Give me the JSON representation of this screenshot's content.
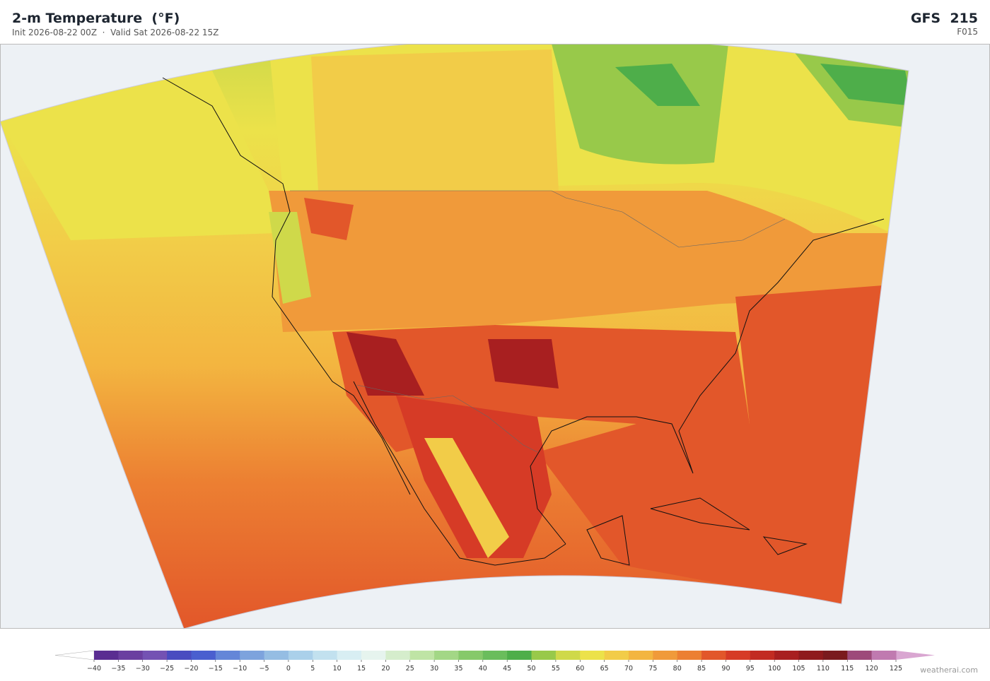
{
  "header": {
    "title": "2-m Temperature  (°F)",
    "subtitle": "Init 2026-08-22 00Z  ·  Valid Sat 2026-08-22 15Z",
    "model": "GFS  215",
    "forecast_hour": "F015"
  },
  "colorbar": {
    "ticks": [
      {
        "value": -40,
        "label": "−40"
      },
      {
        "value": -35,
        "label": "−35"
      },
      {
        "value": -30,
        "label": "−30"
      },
      {
        "value": -25,
        "label": "−25"
      },
      {
        "value": -20,
        "label": "−20"
      },
      {
        "value": -15,
        "label": "−15"
      },
      {
        "value": -10,
        "label": "−10"
      },
      {
        "value": -5,
        "label": "−5"
      },
      0,
      5,
      10,
      15,
      20,
      25,
      30,
      35,
      40,
      45,
      50,
      55,
      60,
      65,
      70,
      75,
      80,
      85,
      90,
      95,
      100,
      105,
      110,
      115,
      120,
      125
    ],
    "colors": [
      "#5a2d91",
      "#6b3fa0",
      "#7452b3",
      "#4a4cc0",
      "#4a5fcf",
      "#6486d8",
      "#7da3dd",
      "#95bde3",
      "#aad0ea",
      "#c2e1ef",
      "#d8eef3",
      "#e6f4ee",
      "#d5edcc",
      "#bfe4a5",
      "#a3d786",
      "#86c96a",
      "#6abd5c",
      "#4eae4a",
      "#98c94a",
      "#cfd94a",
      "#ece24a",
      "#f2cc48",
      "#f3b540",
      "#f09a3a",
      "#ec7f32",
      "#e2572a",
      "#d63b26",
      "#c22b22",
      "#a81f20",
      "#8f1a1d",
      "#7a1a1e",
      "#9d4a7a",
      "#c07ab0"
    ],
    "under_color": "#ffffff",
    "over_color": "#d9a6d1"
  },
  "credit": "weatherai.com"
}
